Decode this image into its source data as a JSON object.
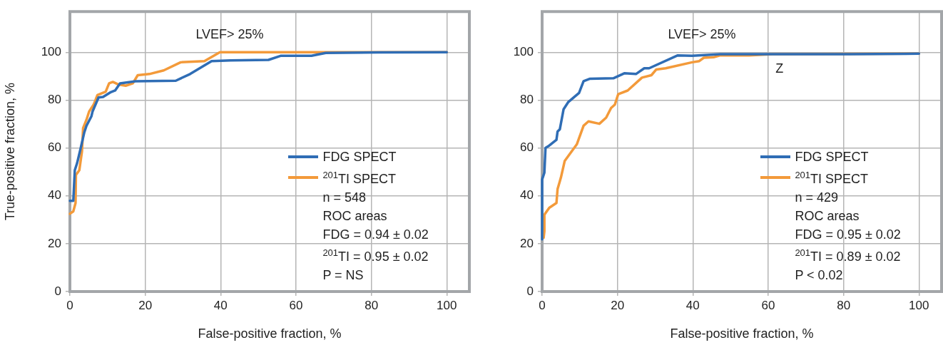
{
  "chart_data": [
    {
      "type": "line",
      "xlabel": "False-positive fraction, %",
      "ylabel": "True-positive fraction, %",
      "annotations": [
        "LVEF> 25%",
        "n = 548",
        "ROC areas",
        "FDG = 0.94 ± 0.02",
        "$^{201}$TI = 0.95 ± 0.02",
        "P = NS"
      ],
      "series": [
        {
          "name": "FDG SPECT",
          "color": "#2f6db5",
          "x": [
            0,
            0.9,
            1.3,
            1.9,
            2.8,
            3.8,
            4.4,
            5.7,
            6.0,
            7.6,
            8.8,
            10.7,
            12,
            13.3,
            17.4,
            28.1,
            31.9,
            37.6,
            42.6,
            52.7,
            55.9,
            64.1,
            67.9,
            81.8,
            100
          ],
          "values": [
            37.9,
            37.9,
            50.7,
            53.6,
            59.5,
            66.4,
            69.3,
            73.2,
            75.2,
            81.1,
            81.3,
            83.2,
            84,
            87,
            87.9,
            88.1,
            90.9,
            96.3,
            96.6,
            96.8,
            98.5,
            98.5,
            99.7,
            99.9,
            100
          ]
        },
        {
          "name": "$^{201}$TI SPECT",
          "color": "#f39a3a",
          "x": [
            0,
            0.9,
            1.5,
            1.6,
            2.5,
            3.2,
            3.5,
            4.4,
            5.1,
            6.3,
            7.3,
            9.5,
            10.4,
            11.4,
            12.9,
            14.8,
            16.7,
            18,
            21.1,
            24.9,
            29.4,
            35.7,
            39.8,
            100
          ],
          "values": [
            32.5,
            33.5,
            37,
            48.7,
            50.7,
            58.5,
            68.3,
            71.8,
            75.2,
            78.1,
            82.1,
            83.5,
            87,
            87.6,
            86.5,
            86,
            87,
            90.4,
            90.9,
            92.4,
            95.8,
            96.3,
            100,
            100
          ]
        }
      ],
      "xlim": [
        0,
        106
      ],
      "ylim": [
        0,
        117
      ],
      "xticks": [
        0,
        20,
        40,
        60,
        80,
        100
      ],
      "yticks": [
        0,
        20,
        40,
        60,
        80,
        100
      ],
      "grid": true,
      "legend": "bottom right",
      "marker": "none"
    },
    {
      "type": "line",
      "xlabel": "False-positive fraction, %",
      "annotations": [
        "LVEF> 25%",
        {
          "text": "Z",
          "x": 63,
          "y": 99.2
        },
        "n = 429",
        "ROC areas",
        "FDG = 0.95 ± 0.02",
        "$^{201}$TI = 0.89 ± 0.02",
        "P < 0.02"
      ],
      "series": [
        {
          "name": "FDG SPECT",
          "color": "#2f6db5",
          "x": [
            0,
            0,
            0.6,
            0.9,
            1.9,
            3.8,
            4.1,
            4.7,
            5.7,
            6.9,
            9.8,
            11,
            12.6,
            18.9,
            21.8,
            24.9,
            27.1,
            28.4,
            36,
            39.8,
            47.3,
            81.4,
            100
          ],
          "values": [
            21.8,
            46.8,
            49.7,
            60,
            61,
            63.4,
            66.9,
            67.8,
            76.2,
            79.1,
            83,
            87.9,
            88.9,
            89.1,
            91.2,
            90.9,
            93.3,
            93.3,
            98.7,
            98.5,
            99.2,
            99.2,
            99.4
          ]
        },
        {
          "name": "$^{201}$TI SPECT",
          "color": "#f39a3a",
          "x": [
            0.4,
            0.6,
            0.6,
            1.9,
            3.8,
            4.1,
            5,
            6,
            9.2,
            11,
            12.3,
            15.2,
            17,
            18.3,
            19.3,
            20.2,
            22.7,
            26.5,
            29,
            30.3,
            32.8,
            39.8,
            41.7,
            42.9,
            45.5,
            47.3,
            54.9,
            61.2,
            100
          ],
          "values": [
            22.5,
            25.2,
            32.1,
            35,
            37,
            42.8,
            47.7,
            54.6,
            61.5,
            69.3,
            71.1,
            70.1,
            72.7,
            76.7,
            78.1,
            82.5,
            84,
            89.4,
            90.4,
            92.8,
            93.3,
            95.8,
            96.3,
            97.7,
            97.9,
            98.7,
            98.7,
            99.2,
            99.4
          ]
        }
      ],
      "xlim": [
        0,
        106
      ],
      "ylim": [
        0,
        117
      ],
      "xticks": [
        0,
        20,
        40,
        60,
        80,
        100
      ],
      "yticks": [
        0,
        20,
        40,
        60,
        80,
        100
      ],
      "grid": true,
      "legend": "bottom right",
      "marker": "none"
    }
  ]
}
